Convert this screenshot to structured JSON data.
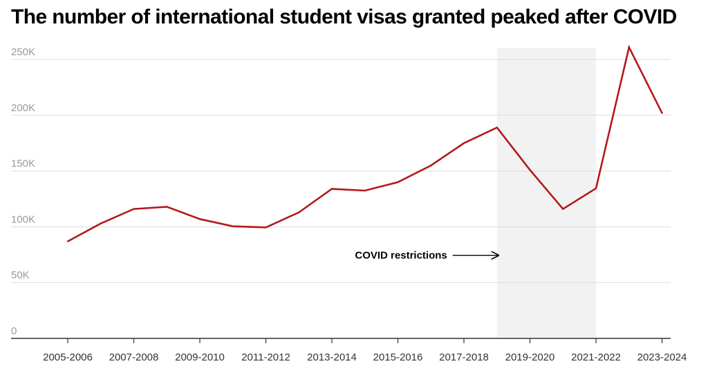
{
  "chart_data": {
    "type": "line",
    "title": "The number of international student visas granted peaked after COVID",
    "xlabel": "",
    "ylabel": "",
    "ylim": [
      0,
      260000
    ],
    "grid": true,
    "y_ticks": [
      {
        "value": 0,
        "label": "0"
      },
      {
        "value": 50000,
        "label": "50K"
      },
      {
        "value": 100000,
        "label": "100K"
      },
      {
        "value": 150000,
        "label": "150K"
      },
      {
        "value": 200000,
        "label": "200K"
      },
      {
        "value": 250000,
        "label": "250K"
      }
    ],
    "x": [
      "2005-2006",
      "2006-2007",
      "2007-2008",
      "2008-2009",
      "2009-2010",
      "2010-2011",
      "2011-2012",
      "2012-2013",
      "2013-2014",
      "2014-2015",
      "2015-2016",
      "2016-2017",
      "2017-2018",
      "2018-2019",
      "2019-2020",
      "2020-2021",
      "2021-2022",
      "2022-2023",
      "2023-2024"
    ],
    "x_tick_labels": [
      "2005-2006",
      "2007-2008",
      "2009-2010",
      "2011-2012",
      "2013-2014",
      "2015-2016",
      "2017-2018",
      "2019-2020",
      "2021-2022",
      "2023-2024"
    ],
    "series": [
      {
        "color": "#b5171b",
        "values": [
          87000,
          103000,
          116000,
          118000,
          107000,
          100500,
          99500,
          113000,
          134000,
          132500,
          140000,
          155000,
          175000,
          189000,
          151000,
          116000,
          134500,
          261000,
          202000
        ]
      }
    ],
    "shaded_region": {
      "x_start": "2018-2019",
      "x_end": "2021-2022",
      "color": "#f2f2f2"
    },
    "annotations": [
      {
        "text": "COVID restrictions",
        "arrow_to": "2018-2019",
        "y": 72000
      }
    ]
  }
}
